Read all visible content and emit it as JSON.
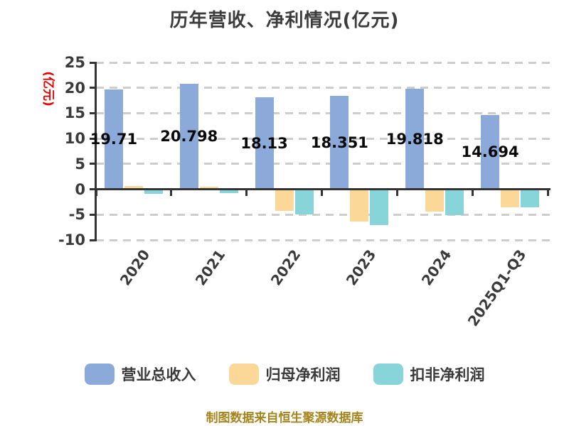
{
  "title": "历年营收、净利情况(亿元)",
  "y_axis_unit": "(亿元)",
  "footer": "制图数据来自恒生聚源数据库",
  "colors": {
    "revenue_bar": "#8caad9",
    "net_profit_bar": "#fbd898",
    "deducted_net_profit_bar": "#87d4d9",
    "axis": "#333333",
    "gridline": "#cdcdcd",
    "title_text": "#3c3c3c",
    "unit_label_text": "#e60000",
    "footer_text": "#a6831b",
    "value_label_text": "#0a0a0a"
  },
  "chart_data": {
    "type": "bar",
    "title": "历年营收、净利情况(亿元)",
    "ylabel": "(亿元)",
    "categories": [
      "2020",
      "2021",
      "2022",
      "2023",
      "2024",
      "2025Q1-Q3"
    ],
    "series": [
      {
        "key": "revenue",
        "name": "营业总收入",
        "color": "#8caad9",
        "values": [
          19.71,
          20.798,
          18.13,
          18.351,
          19.818,
          14.694
        ],
        "labels": [
          "19.71",
          "20.798",
          "18.13",
          "18.351",
          "19.818",
          "14.694"
        ]
      },
      {
        "key": "net-profit",
        "name": "归母净利润",
        "color": "#fbd898",
        "estimated": true,
        "values": [
          0.7,
          0.5,
          -4.3,
          -6.4,
          -4.4,
          -3.5
        ]
      },
      {
        "key": "deducted-net-profit",
        "name": "扣非净利润",
        "color": "#87d4d9",
        "estimated": true,
        "values": [
          -0.95,
          -0.8,
          -5.0,
          -7.1,
          -5.1,
          -3.6
        ]
      }
    ],
    "yticks": [
      25,
      20,
      15,
      10,
      5,
      0,
      -5,
      -10
    ],
    "ylim": [
      -10,
      25
    ],
    "grid": "dashed horizontal",
    "legend_position": "bottom"
  }
}
